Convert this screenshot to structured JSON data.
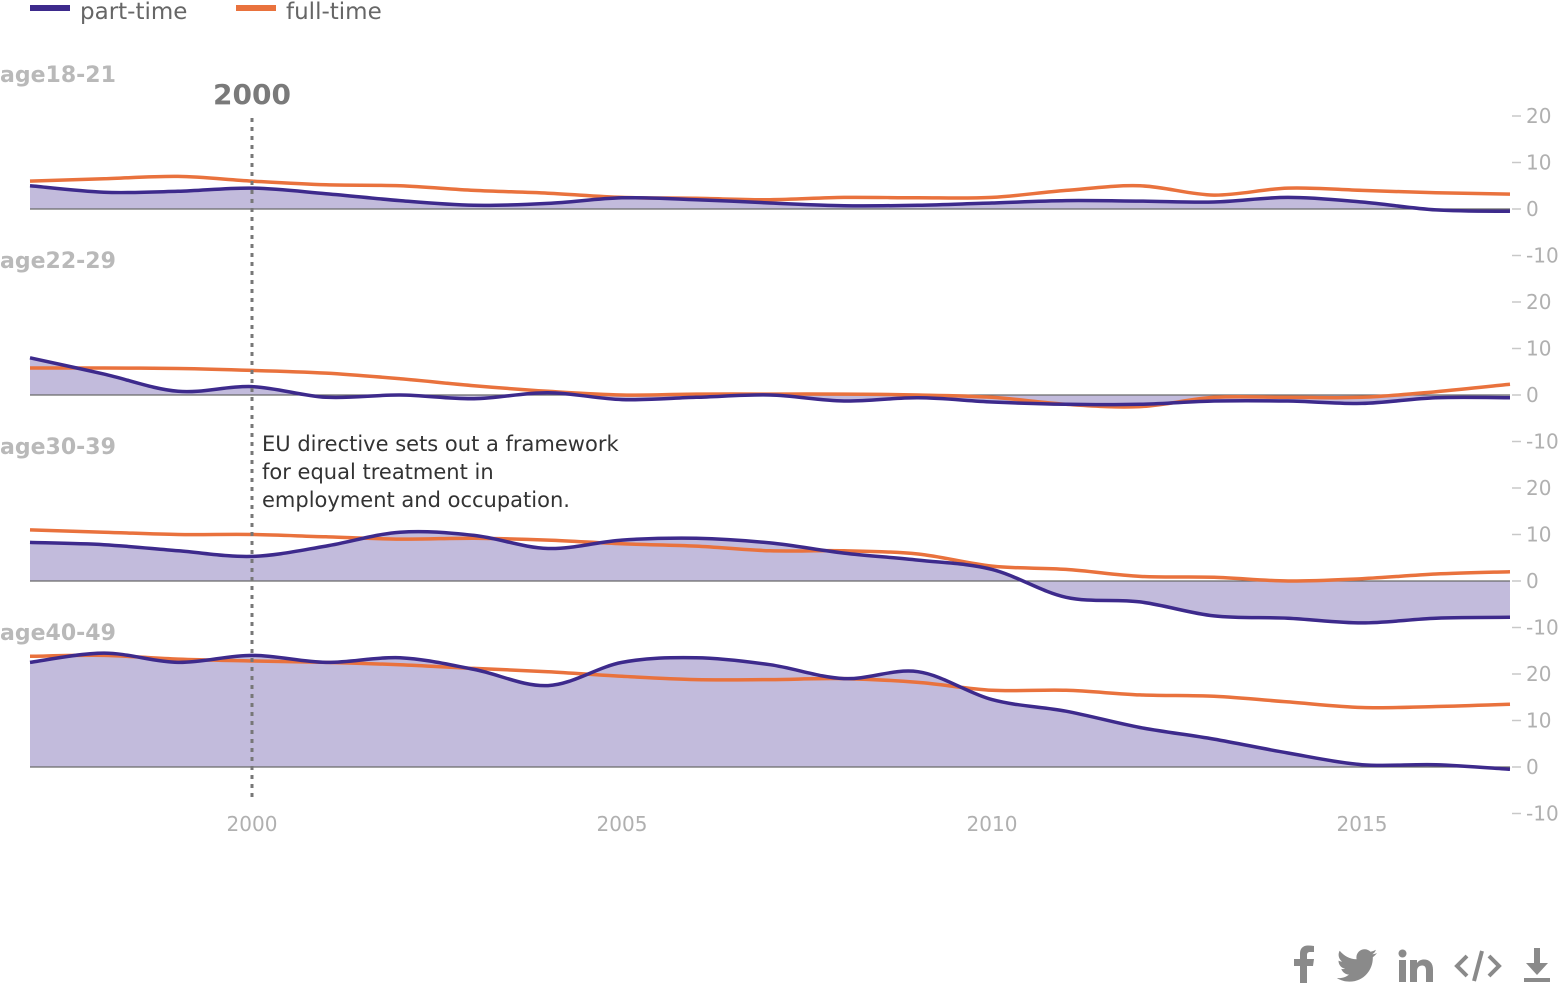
{
  "legend": [
    {
      "label": "part-time",
      "color": "#3d2a8c"
    },
    {
      "label": "full-time",
      "color": "#e9723d"
    }
  ],
  "marker": {
    "year": 2000,
    "label": "2000"
  },
  "annotation": {
    "lines": [
      "EU directive sets out a framework",
      "for equal treatment in",
      "employment and occupation."
    ]
  },
  "share": [
    "facebook-icon",
    "twitter-icon",
    "linkedin-icon",
    "embed-code-icon",
    "download-icon"
  ],
  "chart_data": {
    "type": "area",
    "xlim": [
      1997,
      2017
    ],
    "x_ticks": [
      2000,
      2005,
      2010,
      2015
    ],
    "y_ticks": [
      20,
      10,
      0,
      -10
    ],
    "fill_color": "#c2bbdc",
    "panels": [
      {
        "label": "age18-21",
        "series": [
          {
            "name": "part-time",
            "x": [
              1997,
              1998,
              1999,
              2000,
              2001,
              2002,
              2003,
              2004,
              2005,
              2006,
              2007,
              2008,
              2009,
              2010,
              2011,
              2012,
              2013,
              2014,
              2015,
              2016,
              2017
            ],
            "values": [
              5,
              3.6,
              3.8,
              4.5,
              3.3,
              1.8,
              0.8,
              1.2,
              2.4,
              2,
              1.3,
              0.7,
              0.8,
              1.3,
              1.8,
              1.7,
              1.5,
              2.5,
              1.5,
              -0.2,
              -0.5
            ]
          },
          {
            "name": "full-time",
            "x": [
              1997,
              1998,
              1999,
              2000,
              2001,
              2002,
              2003,
              2004,
              2005,
              2006,
              2007,
              2008,
              2009,
              2010,
              2011,
              2012,
              2013,
              2014,
              2015,
              2016,
              2017
            ],
            "values": [
              6,
              6.5,
              7,
              6,
              5.2,
              5,
              4,
              3.4,
              2.5,
              2.3,
              2,
              2.5,
              2.4,
              2.5,
              4,
              5,
              3,
              4.5,
              4,
              3.5,
              3.2
            ]
          }
        ]
      },
      {
        "label": "age22-29",
        "series": [
          {
            "name": "part-time",
            "x": [
              1997,
              1998,
              1999,
              2000,
              2001,
              2002,
              2003,
              2004,
              2005,
              2006,
              2007,
              2008,
              2009,
              2010,
              2011,
              2012,
              2013,
              2014,
              2015,
              2016,
              2017
            ],
            "values": [
              8,
              4.5,
              0.8,
              1.8,
              -0.5,
              0,
              -0.8,
              0.5,
              -1,
              -0.5,
              0,
              -1.3,
              -0.6,
              -1.5,
              -2,
              -2,
              -1.3,
              -1.3,
              -1.8,
              -0.6,
              -0.6
            ]
          },
          {
            "name": "full-time",
            "x": [
              1997,
              1998,
              1999,
              2000,
              2001,
              2002,
              2003,
              2004,
              2005,
              2006,
              2007,
              2008,
              2009,
              2010,
              2011,
              2012,
              2013,
              2014,
              2015,
              2016,
              2017
            ],
            "values": [
              5.8,
              5.8,
              5.7,
              5.3,
              4.7,
              3.5,
              2,
              0.8,
              0,
              0.2,
              0.2,
              0.2,
              0,
              -0.5,
              -2,
              -2.5,
              -0.5,
              -0.5,
              -0.5,
              0.7,
              2.3
            ]
          }
        ]
      },
      {
        "label": "age30-39",
        "series": [
          {
            "name": "part-time",
            "x": [
              1997,
              1998,
              1999,
              2000,
              2001,
              2002,
              2003,
              2004,
              2005,
              2006,
              2007,
              2008,
              2009,
              2010,
              2011,
              2012,
              2013,
              2014,
              2015,
              2016,
              2017
            ],
            "values": [
              8.3,
              7.8,
              6.5,
              5.3,
              7.5,
              10.5,
              9.8,
              7,
              8.8,
              9.2,
              8.2,
              6,
              4.5,
              2.5,
              -3.5,
              -4.5,
              -7.5,
              -8,
              -9,
              -8,
              -7.8
            ]
          },
          {
            "name": "full-time",
            "x": [
              1997,
              1998,
              1999,
              2000,
              2001,
              2002,
              2003,
              2004,
              2005,
              2006,
              2007,
              2008,
              2009,
              2010,
              2011,
              2012,
              2013,
              2014,
              2015,
              2016,
              2017
            ],
            "values": [
              11,
              10.5,
              10,
              10,
              9.5,
              9,
              9.2,
              8.8,
              8,
              7.5,
              6.5,
              6.5,
              5.8,
              3.2,
              2.5,
              1,
              0.8,
              0,
              0.5,
              1.5,
              2
            ]
          }
        ]
      },
      {
        "label": "age40-49",
        "series": [
          {
            "name": "part-time",
            "x": [
              1997,
              1998,
              1999,
              2000,
              2001,
              2002,
              2003,
              2004,
              2005,
              2006,
              2007,
              2008,
              2009,
              2010,
              2011,
              2012,
              2013,
              2014,
              2015,
              2016,
              2017
            ],
            "values": [
              22.5,
              24.5,
              22.5,
              24,
              22.5,
              23.5,
              21,
              17.5,
              22.5,
              23.5,
              22,
              19,
              20.5,
              14.5,
              12,
              8.5,
              6,
              3,
              0.5,
              0.5,
              -0.5
            ]
          },
          {
            "name": "full-time",
            "x": [
              1997,
              1998,
              1999,
              2000,
              2001,
              2002,
              2003,
              2004,
              2005,
              2006,
              2007,
              2008,
              2009,
              2010,
              2011,
              2012,
              2013,
              2014,
              2015,
              2016,
              2017
            ],
            "values": [
              23.8,
              24,
              23.2,
              22.8,
              22.5,
              22,
              21.2,
              20.5,
              19.5,
              18.8,
              18.8,
              19,
              18.2,
              16.5,
              16.5,
              15.5,
              15.2,
              14,
              12.8,
              13,
              13.5
            ]
          }
        ]
      }
    ]
  }
}
